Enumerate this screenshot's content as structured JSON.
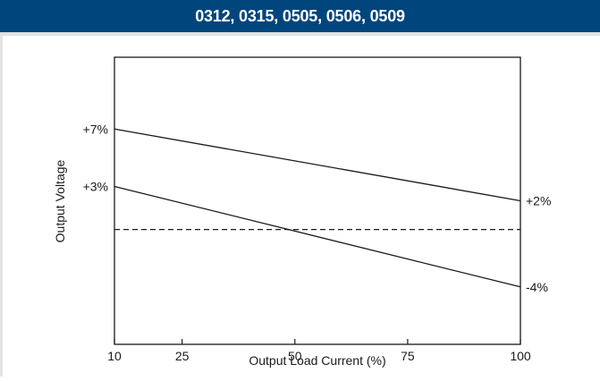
{
  "header": {
    "title": "0312, 0315, 0505, 0506, 0509"
  },
  "colors": {
    "header_bg": "#00457c",
    "header_text": "#ffffff",
    "line": "#1a1a1a"
  },
  "chart_data": {
    "type": "line",
    "title": "0312, 0315, 0505, 0506, 0509",
    "xlabel": "Output Load Current (%)",
    "ylabel": "Output Voltage",
    "xlim": [
      10,
      100
    ],
    "ylim": [
      -8,
      12
    ],
    "x_ticks": [
      10,
      25,
      50,
      75,
      100
    ],
    "grid": false,
    "series": [
      {
        "x": [
          10,
          100
        ],
        "y": [
          7,
          2
        ],
        "style": "solid",
        "labels": [
          "+7%",
          "+2%"
        ]
      },
      {
        "x": [
          10,
          100
        ],
        "y": [
          3,
          -4
        ],
        "style": "solid",
        "labels": [
          "+3%",
          "-4%"
        ]
      },
      {
        "x": [
          10,
          100
        ],
        "y": [
          0,
          0
        ],
        "style": "dashed"
      }
    ]
  }
}
